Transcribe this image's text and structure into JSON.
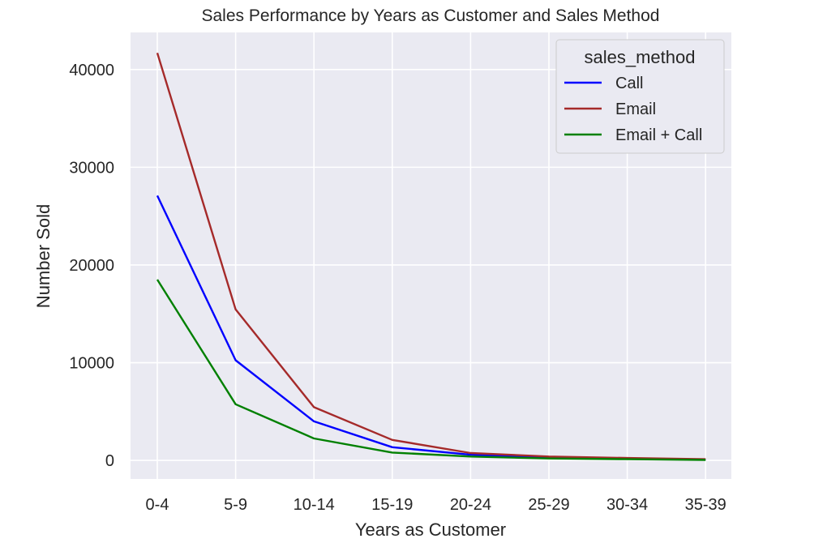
{
  "chart_data": {
    "type": "line",
    "title": "Sales Performance by Years as Customer and Sales Method",
    "xlabel": "Years as Customer",
    "ylabel": "Number Sold",
    "categories": [
      "0-4",
      "5-9",
      "10-14",
      "15-19",
      "20-24",
      "25-29",
      "30-34",
      "35-39"
    ],
    "yticks": [
      0,
      10000,
      20000,
      30000,
      40000
    ],
    "ylim": [
      -1900,
      43800
    ],
    "grid": true,
    "legend": {
      "title": "sales_method",
      "placement": "top-right"
    },
    "series": [
      {
        "name": "Call",
        "color": "#0000ff",
        "values": [
          27100,
          10250,
          4000,
          1350,
          580,
          300,
          180,
          80
        ]
      },
      {
        "name": "Email",
        "color": "#a52a2a",
        "values": [
          41700,
          15450,
          5450,
          2100,
          750,
          400,
          250,
          120
        ]
      },
      {
        "name": "Email + Call",
        "color": "#008000",
        "values": [
          18500,
          5750,
          2250,
          800,
          400,
          200,
          120,
          50
        ]
      }
    ],
    "background_color": "#eaeaf2",
    "grid_color": "#ffffff"
  }
}
